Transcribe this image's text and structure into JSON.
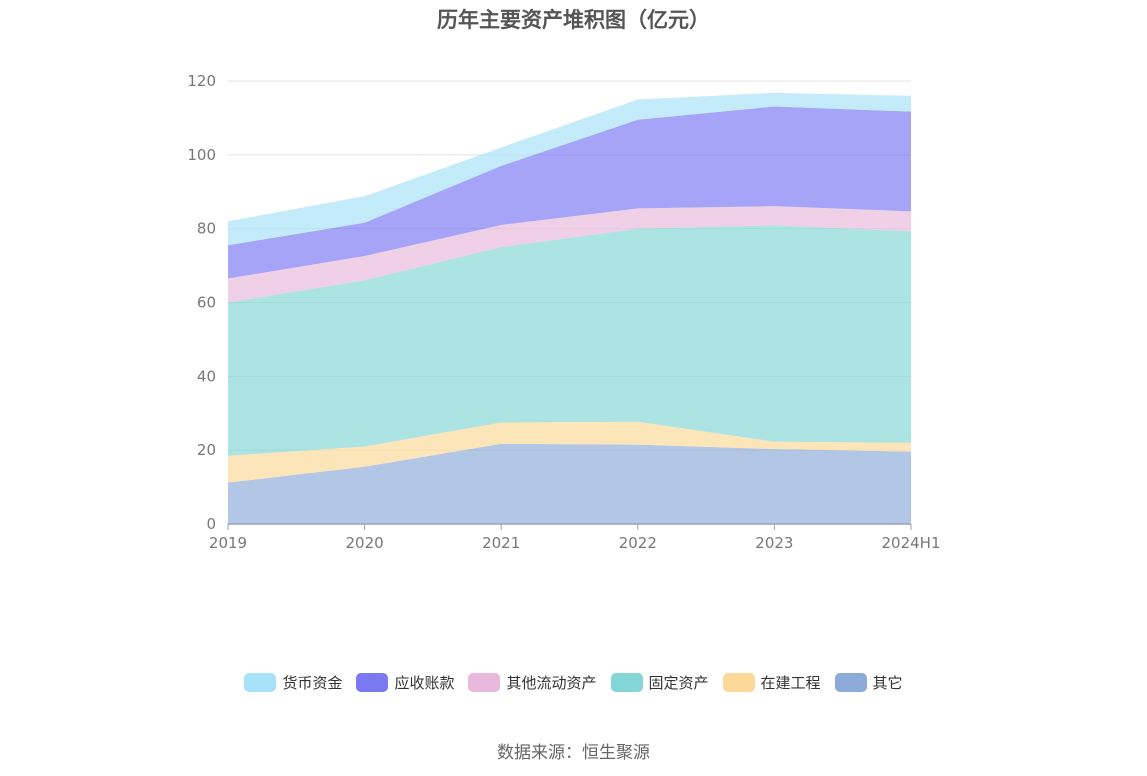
{
  "chart_data": {
    "type": "area",
    "stacked": true,
    "title": "历年主要资产堆积图（亿元）",
    "categories": [
      "2019",
      "2020",
      "2021",
      "2022",
      "2023",
      "2024H1"
    ],
    "ylim": [
      0,
      120
    ],
    "yticks": [
      0,
      20,
      40,
      60,
      80,
      100,
      120
    ],
    "grid": true,
    "legend_position": "bottom",
    "series": [
      {
        "name": "其它",
        "color": "#8dabd9",
        "values": [
          11.2,
          15.5,
          21.7,
          21.5,
          20.3,
          19.6
        ]
      },
      {
        "name": "在建工程",
        "color": "#fcd999",
        "values": [
          7.3,
          5.5,
          5.8,
          6.2,
          2.0,
          2.4
        ]
      },
      {
        "name": "固定资产",
        "color": "#85d6d6",
        "values": [
          41.5,
          45.0,
          47.5,
          52.3,
          58.6,
          57.3
        ]
      },
      {
        "name": "其他流动资产",
        "color": "#e8b9dc",
        "values": [
          6.5,
          6.6,
          6.0,
          5.5,
          5.2,
          5.4
        ]
      },
      {
        "name": "应收账款",
        "color": "#7a79f2",
        "values": [
          9.0,
          9.0,
          16.0,
          24.0,
          27.0,
          27.0
        ]
      },
      {
        "name": "货币资金",
        "color": "#a8e2f8",
        "values": [
          6.5,
          7.2,
          5.0,
          5.5,
          3.7,
          4.3
        ]
      }
    ]
  },
  "legend": [
    {
      "label": "货币资金",
      "color": "#a8e2f8"
    },
    {
      "label": "应收账款",
      "color": "#7a79f2"
    },
    {
      "label": "其他流动资产",
      "color": "#e8b9dc"
    },
    {
      "label": "固定资产",
      "color": "#85d6d6"
    },
    {
      "label": "在建工程",
      "color": "#fcd999"
    },
    {
      "label": "其它",
      "color": "#8dabd9"
    }
  ],
  "source_note": "数据来源：恒生聚源"
}
